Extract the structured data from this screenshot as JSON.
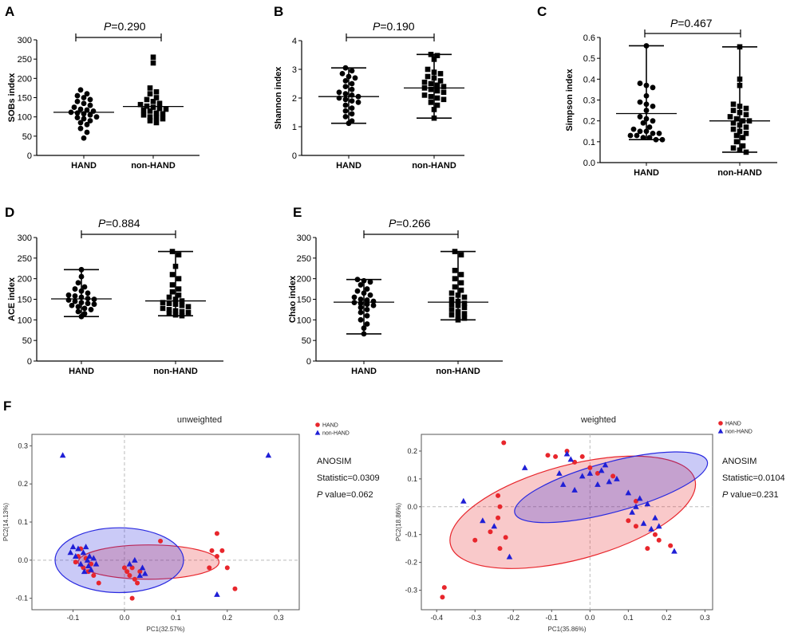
{
  "figure_label": "F",
  "chart_data": [
    {
      "type": "scatter",
      "panel": "A",
      "ylabel": "SOBs index",
      "ylim": [
        0,
        300
      ],
      "yticks": [
        0,
        50,
        100,
        150,
        200,
        250,
        300
      ],
      "categories": [
        "HAND",
        "non-HAND"
      ],
      "p_text": "=0.290",
      "groups": [
        {
          "name": "HAND",
          "marker": "circle",
          "median": 112,
          "whisker_low": null,
          "whisker_high": null,
          "values": [
            170,
            160,
            155,
            150,
            145,
            140,
            135,
            130,
            125,
            120,
            118,
            115,
            112,
            110,
            108,
            105,
            100,
            98,
            95,
            90,
            85,
            80,
            70,
            60,
            45
          ]
        },
        {
          "name": "non-HAND",
          "marker": "square",
          "median": 127,
          "whisker_low": null,
          "whisker_high": null,
          "values": [
            255,
            240,
            175,
            165,
            160,
            150,
            145,
            140,
            135,
            132,
            128,
            125,
            122,
            120,
            118,
            115,
            110,
            108,
            105,
            100,
            98,
            95,
            90,
            85
          ]
        }
      ]
    },
    {
      "type": "scatter",
      "panel": "B",
      "ylabel": "Shannon index",
      "ylim": [
        0,
        4
      ],
      "yticks": [
        0,
        1,
        2,
        3,
        4
      ],
      "categories": [
        "HAND",
        "non-HAND"
      ],
      "p_text": "=0.190",
      "groups": [
        {
          "name": "HAND",
          "marker": "circle",
          "median": 2.05,
          "whisker_low": 1.12,
          "whisker_high": 3.05,
          "values": [
            3.05,
            2.95,
            2.85,
            2.75,
            2.7,
            2.6,
            2.5,
            2.4,
            2.3,
            2.2,
            2.15,
            2.1,
            2.05,
            2.0,
            1.95,
            1.9,
            1.85,
            1.75,
            1.65,
            1.55,
            1.45,
            1.35,
            1.2,
            1.12
          ]
        },
        {
          "name": "non-HAND",
          "marker": "square",
          "median": 2.35,
          "whisker_low": 1.3,
          "whisker_high": 3.52,
          "values": [
            3.52,
            3.48,
            3.35,
            3.0,
            2.9,
            2.85,
            2.75,
            2.7,
            2.6,
            2.55,
            2.5,
            2.45,
            2.4,
            2.35,
            2.3,
            2.25,
            2.2,
            2.1,
            2.05,
            2.0,
            1.95,
            1.85,
            1.75,
            1.6,
            1.3
          ]
        }
      ]
    },
    {
      "type": "scatter",
      "panel": "C",
      "ylabel": "Simpson index",
      "ylim": [
        0,
        0.6
      ],
      "yticks": [
        0.0,
        0.1,
        0.2,
        0.3,
        0.4,
        0.5,
        0.6
      ],
      "categories": [
        "HAND",
        "non-HAND"
      ],
      "p_text": "=0.467",
      "groups": [
        {
          "name": "HAND",
          "marker": "circle",
          "median": 0.235,
          "whisker_low": 0.11,
          "whisker_high": 0.56,
          "values": [
            0.56,
            0.38,
            0.37,
            0.36,
            0.32,
            0.29,
            0.28,
            0.27,
            0.25,
            0.22,
            0.21,
            0.2,
            0.19,
            0.17,
            0.16,
            0.15,
            0.15,
            0.14,
            0.14,
            0.13,
            0.13,
            0.12,
            0.12,
            0.11,
            0.11
          ]
        },
        {
          "name": "non-HAND",
          "marker": "square",
          "median": 0.2,
          "whisker_low": 0.05,
          "whisker_high": 0.555,
          "values": [
            0.555,
            0.4,
            0.37,
            0.28,
            0.27,
            0.26,
            0.25,
            0.24,
            0.23,
            0.22,
            0.21,
            0.2,
            0.2,
            0.19,
            0.18,
            0.17,
            0.16,
            0.15,
            0.14,
            0.13,
            0.12,
            0.1,
            0.08,
            0.07,
            0.06,
            0.05
          ]
        }
      ]
    },
    {
      "type": "scatter",
      "panel": "D",
      "ylabel": "ACE index",
      "ylim": [
        0,
        300
      ],
      "yticks": [
        0,
        50,
        100,
        150,
        200,
        250,
        300
      ],
      "categories": [
        "HAND",
        "non-HAND"
      ],
      "p_text": "=0.884",
      "groups": [
        {
          "name": "HAND",
          "marker": "circle",
          "median": 151,
          "whisker_low": 108,
          "whisker_high": 222,
          "values": [
            222,
            205,
            190,
            180,
            175,
            170,
            165,
            160,
            158,
            155,
            152,
            150,
            148,
            145,
            142,
            140,
            138,
            135,
            132,
            128,
            125,
            120,
            115,
            108
          ]
        },
        {
          "name": "non-HAND",
          "marker": "square",
          "median": 146,
          "whisker_low": 110,
          "whisker_high": 266,
          "values": [
            266,
            258,
            230,
            210,
            200,
            185,
            175,
            168,
            160,
            155,
            150,
            146,
            142,
            140,
            138,
            135,
            132,
            128,
            125,
            122,
            120,
            118,
            115,
            112,
            110
          ]
        }
      ]
    },
    {
      "type": "scatter",
      "panel": "E",
      "ylabel": "Chao index",
      "ylim": [
        0,
        300
      ],
      "yticks": [
        0,
        50,
        100,
        150,
        200,
        250,
        300
      ],
      "categories": [
        "HAND",
        "non-HAND"
      ],
      "p_text": "=0.266",
      "groups": [
        {
          "name": "HAND",
          "marker": "circle",
          "median": 143,
          "whisker_low": 66,
          "whisker_high": 198,
          "values": [
            198,
            195,
            192,
            185,
            175,
            170,
            165,
            160,
            155,
            150,
            148,
            145,
            142,
            140,
            138,
            135,
            130,
            125,
            118,
            110,
            100,
            90,
            80,
            66
          ]
        },
        {
          "name": "non-HAND",
          "marker": "square",
          "median": 143,
          "whisker_low": 100,
          "whisker_high": 266,
          "values": [
            266,
            258,
            220,
            210,
            200,
            190,
            180,
            172,
            165,
            160,
            155,
            150,
            145,
            140,
            138,
            135,
            130,
            125,
            120,
            115,
            112,
            108,
            104,
            100
          ]
        }
      ]
    },
    {
      "type": "scatter",
      "panel": "F-unweighted",
      "title": "unweighted",
      "xlabel": "PC1(32.57%)",
      "ylabel": "PC2(14.13%)",
      "xlim": [
        -0.18,
        0.34
      ],
      "ylim": [
        -0.13,
        0.33
      ],
      "xticks": [
        -0.1,
        0.0,
        0.1,
        0.2,
        0.3
      ],
      "yticks": [
        -0.1,
        0.0,
        0.1,
        0.2,
        0.3
      ],
      "legend": [
        "HAND",
        "non-HAND"
      ],
      "stats": {
        "title": "ANOSIM",
        "statistic": "Statistic=0.0309",
        "p_label": "P",
        "p_value": " value=0.062"
      },
      "series": [
        {
          "name": "HAND",
          "color": "#e8262c",
          "marker": "circle",
          "points": [
            [
              -0.095,
              -0.005
            ],
            [
              -0.09,
              0.01
            ],
            [
              -0.085,
              0.03
            ],
            [
              -0.08,
              -0.02
            ],
            [
              -0.075,
              0.005
            ],
            [
              -0.07,
              -0.03
            ],
            [
              -0.065,
              -0.01
            ],
            [
              -0.06,
              -0.04
            ],
            [
              -0.05,
              -0.06
            ],
            [
              0.0,
              -0.02
            ],
            [
              0.005,
              -0.03
            ],
            [
              0.01,
              -0.04
            ],
            [
              0.015,
              -0.02
            ],
            [
              0.02,
              -0.05
            ],
            [
              0.025,
              -0.06
            ],
            [
              0.03,
              -0.03
            ],
            [
              0.07,
              0.05
            ],
            [
              0.17,
              0.025
            ],
            [
              0.18,
              0.07
            ],
            [
              0.18,
              0.01
            ],
            [
              0.19,
              0.025
            ],
            [
              0.2,
              -0.02
            ],
            [
              0.215,
              -0.075
            ],
            [
              0.015,
              -0.1
            ],
            [
              0.165,
              -0.02
            ]
          ]
        },
        {
          "name": "non-HAND",
          "color": "#1f1fd6",
          "marker": "triangle",
          "points": [
            [
              -0.12,
              0.275
            ],
            [
              0.28,
              0.275
            ],
            [
              -0.105,
              0.02
            ],
            [
              -0.1,
              0.035
            ],
            [
              -0.095,
              0.01
            ],
            [
              -0.09,
              0.03
            ],
            [
              -0.085,
              -0.01
            ],
            [
              -0.08,
              0.02
            ],
            [
              -0.078,
              -0.03
            ],
            [
              -0.075,
              0.035
            ],
            [
              -0.072,
              0.0
            ],
            [
              -0.07,
              -0.015
            ],
            [
              -0.068,
              0.01
            ],
            [
              -0.065,
              -0.025
            ],
            [
              -0.06,
              0.005
            ],
            [
              -0.055,
              -0.01
            ],
            [
              0.01,
              -0.01
            ],
            [
              0.02,
              0.0
            ],
            [
              0.03,
              -0.04
            ],
            [
              0.035,
              -0.02
            ],
            [
              0.04,
              -0.035
            ],
            [
              0.18,
              -0.09
            ]
          ]
        }
      ],
      "ellipses": [
        {
          "group": "HAND",
          "color": "#e8262c",
          "cx": 0.047,
          "cy": -0.005,
          "rx": 0.137,
          "ry": 0.045,
          "angle_deg": 0
        },
        {
          "group": "non-HAND",
          "color": "#2a2ae0",
          "cx": -0.01,
          "cy": 0.0,
          "rx": 0.125,
          "ry": 0.085,
          "angle_deg": 0
        }
      ]
    },
    {
      "type": "scatter",
      "panel": "F-weighted",
      "title": "weighted",
      "xlabel": "PC1(35.86%)",
      "ylabel": "PC2(18.86%)",
      "xlim": [
        -0.44,
        0.32
      ],
      "ylim": [
        -0.37,
        0.26
      ],
      "xticks": [
        -0.4,
        -0.3,
        -0.2,
        -0.1,
        0.0,
        0.1,
        0.2,
        0.3
      ],
      "yticks": [
        -0.3,
        -0.2,
        -0.1,
        0.0,
        0.1,
        0.2
      ],
      "legend": [
        "HAND",
        "non-HAND"
      ],
      "stats": {
        "title": "ANOSIM",
        "statistic": "Statistic=0.0104",
        "p_label": "P",
        "p_value": " value=0.231"
      },
      "series": [
        {
          "name": "HAND",
          "color": "#e8262c",
          "marker": "circle",
          "points": [
            [
              -0.38,
              -0.29
            ],
            [
              -0.385,
              -0.325
            ],
            [
              -0.3,
              -0.12
            ],
            [
              -0.26,
              -0.09
            ],
            [
              -0.24,
              0.04
            ],
            [
              -0.235,
              0.0
            ],
            [
              -0.235,
              -0.15
            ],
            [
              -0.24,
              -0.04
            ],
            [
              -0.225,
              0.23
            ],
            [
              -0.22,
              -0.11
            ],
            [
              -0.11,
              0.185
            ],
            [
              -0.09,
              0.18
            ],
            [
              -0.06,
              0.2
            ],
            [
              -0.04,
              0.16
            ],
            [
              -0.02,
              0.18
            ],
            [
              0.0,
              0.14
            ],
            [
              0.02,
              0.12
            ],
            [
              0.06,
              0.11
            ],
            [
              0.1,
              -0.05
            ],
            [
              0.12,
              -0.07
            ],
            [
              0.15,
              -0.15
            ],
            [
              0.18,
              -0.12
            ],
            [
              0.21,
              -0.14
            ],
            [
              0.12,
              0.02
            ],
            [
              0.17,
              -0.1
            ]
          ]
        },
        {
          "name": "non-HAND",
          "color": "#1f1fd6",
          "marker": "triangle",
          "points": [
            [
              -0.33,
              0.02
            ],
            [
              -0.28,
              -0.05
            ],
            [
              -0.25,
              -0.07
            ],
            [
              -0.21,
              -0.18
            ],
            [
              -0.17,
              0.14
            ],
            [
              -0.08,
              0.12
            ],
            [
              -0.07,
              0.08
            ],
            [
              -0.06,
              0.19
            ],
            [
              -0.05,
              0.17
            ],
            [
              -0.04,
              0.06
            ],
            [
              -0.02,
              0.11
            ],
            [
              0.0,
              0.12
            ],
            [
              0.02,
              0.08
            ],
            [
              0.03,
              0.13
            ],
            [
              0.04,
              0.15
            ],
            [
              0.05,
              0.09
            ],
            [
              0.07,
              0.1
            ],
            [
              0.1,
              0.05
            ],
            [
              0.11,
              -0.02
            ],
            [
              0.12,
              0.0
            ],
            [
              0.13,
              0.03
            ],
            [
              0.14,
              -0.06
            ],
            [
              0.15,
              0.01
            ],
            [
              0.16,
              -0.08
            ],
            [
              0.17,
              -0.04
            ],
            [
              0.18,
              -0.07
            ],
            [
              0.22,
              -0.16
            ]
          ]
        }
      ],
      "ellipses": [
        {
          "group": "HAND",
          "color": "#e8262c",
          "cx": -0.045,
          "cy": -0.02,
          "rx": 0.33,
          "ry": 0.17,
          "angle_deg": -15
        },
        {
          "group": "non-HAND",
          "color": "#2a2ae0",
          "cx": 0.055,
          "cy": 0.07,
          "rx": 0.26,
          "ry": 0.09,
          "angle_deg": -15
        }
      ]
    }
  ]
}
